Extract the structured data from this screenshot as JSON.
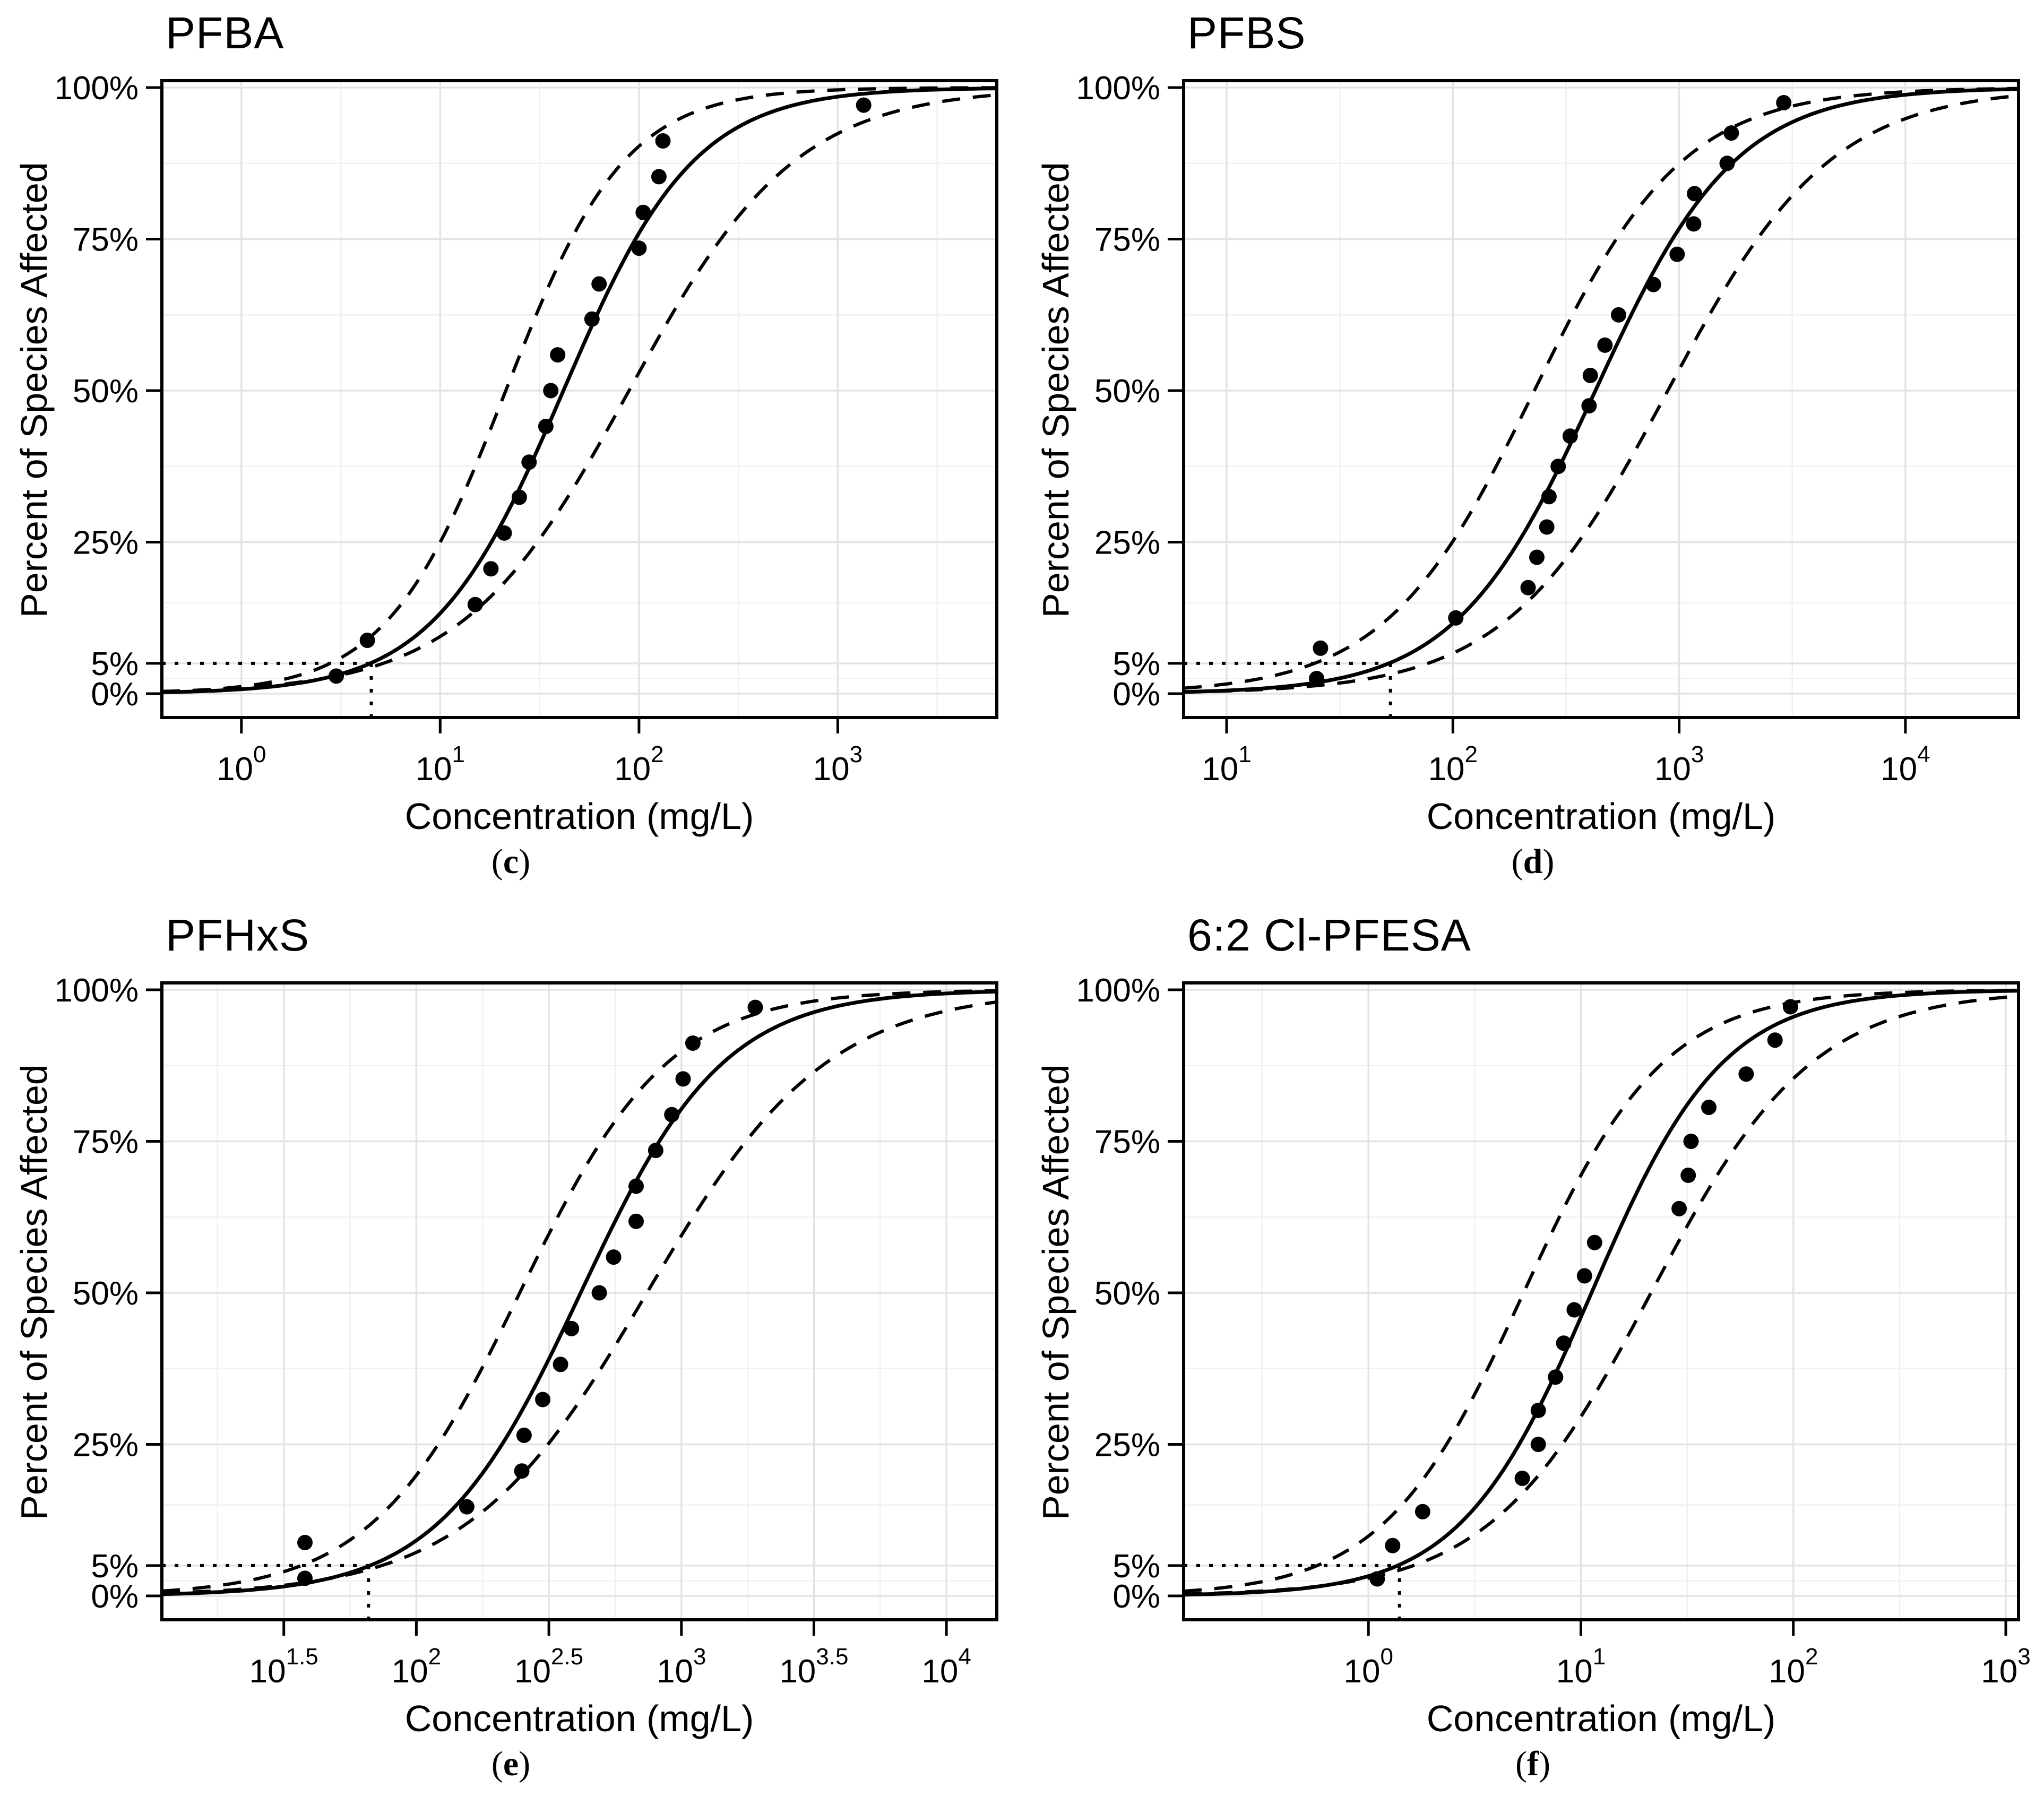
{
  "figure": {
    "background": "#ffffff",
    "caption_open": "(",
    "caption_close": ")",
    "colors": {
      "line": "#000000",
      "point": "#000000",
      "grid_major": "#e3e3e3",
      "grid_minor": "#f1f1f1",
      "panel_border": "#000000"
    },
    "y_axis": {
      "title": "Percent of Species Affected",
      "tick_values": [
        0,
        5,
        25,
        50,
        75,
        100
      ],
      "tick_labels": [
        "0%",
        "5%",
        "25%",
        "50%",
        "75%",
        "100%"
      ],
      "minor_gridlines": [
        2.5,
        15,
        37.5,
        62.5,
        87.5
      ],
      "range": [
        0,
        100
      ]
    }
  },
  "chart_data": [
    {
      "type": "scatter+line",
      "title": "PFBA",
      "caption_letter": "c",
      "xlabel": "Concentration (mg/L)",
      "ylabel": "Percent of Species Affected",
      "x_scale": "log10",
      "xlim_log10": [
        -0.4,
        3.8
      ],
      "x_tick_exponents": [
        "0",
        "1",
        "2",
        "3"
      ],
      "n_species": 17,
      "points": {
        "conc_mg_L": [
          3.0,
          4.3,
          15,
          18,
          21,
          25,
          28,
          34,
          36,
          39,
          58,
          63,
          100,
          105,
          126,
          132,
          1350
        ],
        "percent_affected": [
          2.9,
          8.8,
          14.7,
          20.6,
          26.5,
          32.4,
          38.2,
          44.1,
          50.0,
          55.9,
          61.8,
          67.6,
          73.5,
          79.4,
          85.3,
          91.2,
          97.1
        ]
      },
      "fit_logistic_log10": {
        "mu": 1.62,
        "s": 0.33
      },
      "confidence_band_logistic_log10": {
        "lower": {
          "mu": 1.33,
          "s": 0.3
        },
        "upper": {
          "mu": 1.95,
          "s": 0.42
        }
      },
      "hc5_mg_L": 4.5,
      "hc5_reference_percent": 5
    },
    {
      "type": "scatter+line",
      "title": "PFBS",
      "caption_letter": "d",
      "xlabel": "Concentration (mg/L)",
      "ylabel": "Percent of Species Affected",
      "x_scale": "log10",
      "xlim_log10": [
        0.81,
        4.5
      ],
      "x_tick_exponents": [
        "1",
        "2",
        "3",
        "4"
      ],
      "n_species": 20,
      "points": {
        "conc_mg_L": [
          25,
          26,
          103,
          215,
          235,
          260,
          266,
          292,
          330,
          400,
          405,
          470,
          540,
          770,
          980,
          1160,
          1170,
          1630,
          1700,
          2900
        ],
        "percent_affected": [
          2.5,
          7.5,
          12.5,
          17.5,
          22.5,
          27.5,
          32.5,
          37.5,
          42.5,
          47.5,
          52.5,
          57.5,
          62.5,
          67.5,
          72.5,
          77.5,
          82.5,
          87.5,
          92.5,
          97.5
        ]
      },
      "fit_logistic_log10": {
        "mu": 2.63,
        "s": 0.31
      },
      "confidence_band_logistic_log10": {
        "lower": {
          "mu": 2.36,
          "s": 0.33
        },
        "upper": {
          "mu": 2.95,
          "s": 0.36
        }
      },
      "hc5_mg_L": 53,
      "hc5_reference_percent": 5
    },
    {
      "type": "scatter+line",
      "title": "PFHxS",
      "caption_letter": "e",
      "xlabel": "Concentration (mg/L)",
      "ylabel": "Percent of Species Affected",
      "x_scale": "log10",
      "xlim_log10": [
        1.04,
        4.19
      ],
      "x_tick_exponents": [
        "1.5",
        "2",
        "2.5",
        "3",
        "3.5",
        "4"
      ],
      "n_species": 17,
      "points": {
        "conc_mg_L": [
          38,
          38,
          155,
          250,
          255,
          300,
          350,
          385,
          490,
          555,
          675,
          675,
          800,
          920,
          1015,
          1105,
          1900
        ],
        "percent_affected": [
          2.9,
          8.8,
          14.7,
          20.6,
          26.5,
          32.4,
          38.2,
          44.1,
          50.0,
          55.9,
          61.8,
          67.6,
          73.5,
          79.4,
          85.3,
          91.2,
          97.1
        ]
      },
      "fit_logistic_log10": {
        "mu": 2.62,
        "s": 0.27
      },
      "confidence_band_logistic_log10": {
        "lower": {
          "mu": 2.39,
          "s": 0.28
        },
        "upper": {
          "mu": 2.87,
          "s": 0.34
        }
      },
      "hc5_mg_L": 66,
      "hc5_reference_percent": 5
    },
    {
      "type": "scatter+line",
      "title": "6:2 Cl-PFESA",
      "caption_letter": "f",
      "xlabel": "Concentration (mg/L)",
      "ylabel": "Percent of Species Affected",
      "x_scale": "log10",
      "xlim_log10": [
        -0.87,
        3.06
      ],
      "x_tick_exponents": [
        "0",
        "1",
        "2",
        "3"
      ],
      "n_species": 18,
      "points": {
        "conc_mg_L": [
          1.1,
          1.3,
          1.8,
          5.3,
          6.3,
          6.3,
          7.6,
          8.3,
          9.3,
          10.4,
          11.6,
          29,
          32,
          33,
          40,
          60,
          82,
          97
        ],
        "percent_affected": [
          2.8,
          8.3,
          13.9,
          19.4,
          25.0,
          30.6,
          36.1,
          41.7,
          47.2,
          52.8,
          58.3,
          63.9,
          69.4,
          75.0,
          80.6,
          86.1,
          91.7,
          97.2
        ]
      },
      "fit_logistic_log10": {
        "mu": 1.05,
        "s": 0.31
      },
      "confidence_band_logistic_log10": {
        "lower": {
          "mu": 0.73,
          "s": 0.33
        },
        "upper": {
          "mu": 1.33,
          "s": 0.38
        }
      },
      "hc5_mg_L": 1.4,
      "hc5_reference_percent": 5
    }
  ]
}
